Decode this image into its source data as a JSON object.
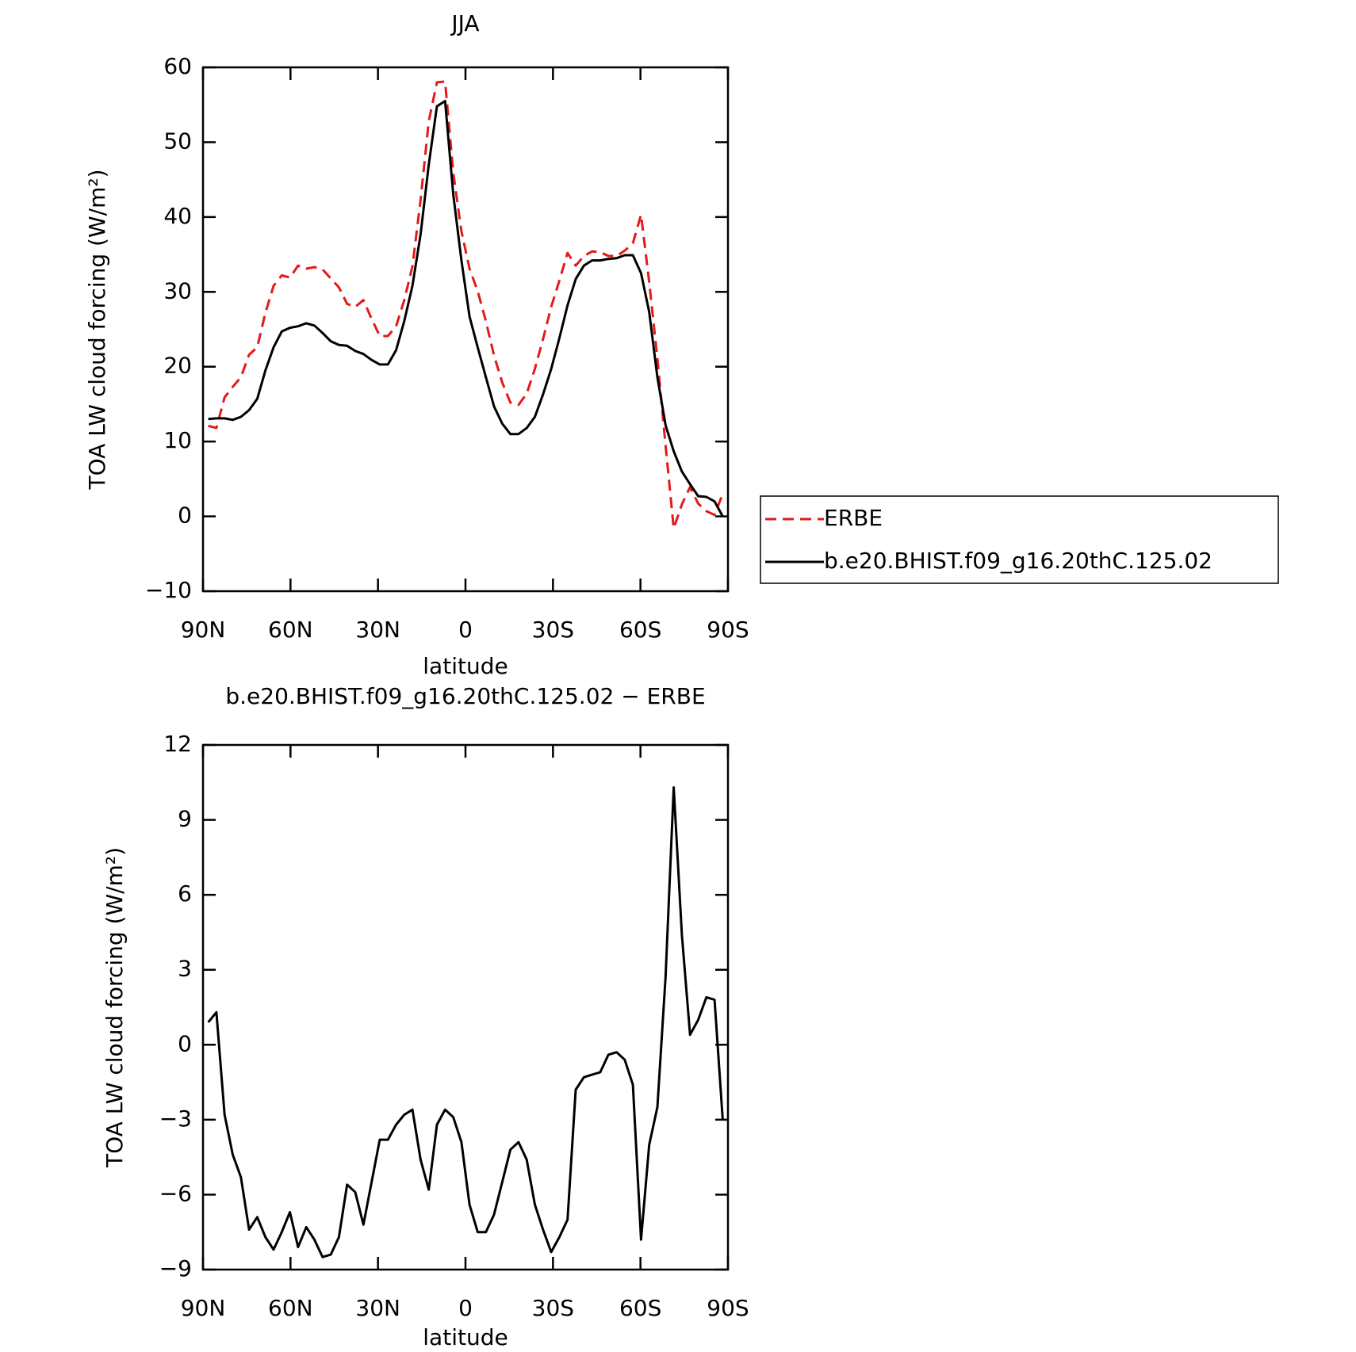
{
  "chart_data": [
    {
      "type": "line",
      "title": "JJA",
      "xlabel": "latitude",
      "ylabel": "TOA LW cloud forcing (W/m²)",
      "x": [
        88.2,
        85.4,
        82.6,
        79.8,
        77.0,
        74.2,
        71.4,
        68.6,
        65.8,
        63.0,
        60.2,
        57.4,
        54.6,
        51.8,
        49.0,
        46.2,
        43.4,
        40.6,
        37.8,
        35.0,
        32.2,
        29.4,
        26.6,
        23.8,
        21.0,
        18.2,
        15.4,
        12.6,
        9.8,
        7.0,
        4.2,
        1.4,
        -1.4,
        -4.2,
        -7.0,
        -9.8,
        -12.6,
        -15.4,
        -18.2,
        -21.0,
        -23.8,
        -26.6,
        -29.4,
        -32.2,
        -35.0,
        -37.8,
        -40.6,
        -43.4,
        -46.2,
        -49.0,
        -51.8,
        -54.6,
        -57.4,
        -60.2,
        -63.0,
        -65.8,
        -68.6,
        -71.4,
        -74.2,
        -77.0,
        -79.8,
        -82.6,
        -85.4,
        -88.2
      ],
      "series": [
        {
          "name": "ERBE",
          "color": "#e31a1c",
          "dash": true,
          "values": [
            12.1,
            11.8,
            15.9,
            17.3,
            18.6,
            21.6,
            22.6,
            27.2,
            30.8,
            32.2,
            31.9,
            33.5,
            33.1,
            33.3,
            33.0,
            31.8,
            30.6,
            28.4,
            28.0,
            28.9,
            26.4,
            24.1,
            24.1,
            25.4,
            28.9,
            33.4,
            42.3,
            52.8,
            58.0,
            58.1,
            45.9,
            38.1,
            33.1,
            30.1,
            26.1,
            21.5,
            17.9,
            15.2,
            14.9,
            16.4,
            19.7,
            23.7,
            28.0,
            31.5,
            35.2,
            33.5,
            34.8,
            35.4,
            35.3,
            34.8,
            34.8,
            35.5,
            36.5,
            40.3,
            31.3,
            21.1,
            9.5,
            -1.6,
            1.6,
            3.9,
            1.7,
            0.7,
            0.2,
            3.0
          ]
        },
        {
          "name": "b.e20.BHIST.f09_g16.20thC.125.02",
          "color": "#000000",
          "dash": false,
          "values": [
            13.0,
            13.1,
            13.1,
            12.9,
            13.3,
            14.2,
            15.7,
            19.5,
            22.6,
            24.7,
            25.2,
            25.4,
            25.8,
            25.5,
            24.5,
            23.4,
            22.9,
            22.8,
            22.1,
            21.7,
            20.9,
            20.3,
            20.3,
            22.2,
            26.1,
            30.8,
            37.7,
            47.0,
            54.8,
            55.5,
            43.0,
            34.2,
            26.7,
            22.6,
            18.6,
            14.7,
            12.4,
            11.0,
            11.0,
            11.8,
            13.3,
            16.3,
            19.7,
            23.8,
            28.2,
            31.7,
            33.5,
            34.2,
            34.2,
            34.4,
            34.5,
            34.9,
            34.9,
            32.5,
            27.3,
            18.6,
            12.2,
            8.7,
            6.0,
            4.3,
            2.7,
            2.6,
            2.0,
            0.0
          ]
        }
      ],
      "xlim": [
        90,
        -90
      ],
      "xticks": [
        {
          "value": 90,
          "label": "90N"
        },
        {
          "value": 60,
          "label": "60N"
        },
        {
          "value": 30,
          "label": "30N"
        },
        0,
        {
          "value": -30,
          "label": "30S"
        },
        {
          "value": -60,
          "label": "60S"
        },
        {
          "value": -90,
          "label": "90S"
        }
      ],
      "ylim": [
        -10,
        60
      ],
      "yticks": [
        {
          "value": -10,
          "label": "−10"
        },
        0,
        10,
        20,
        30,
        40,
        50,
        60
      ],
      "legend": "outside-right"
    },
    {
      "type": "line",
      "title": "b.e20.BHIST.f09_g16.20thC.125.02 − ERBE",
      "xlabel": "latitude",
      "ylabel": "TOA LW cloud forcing (W/m²)",
      "x": [
        88.2,
        85.4,
        82.6,
        79.8,
        77.0,
        74.2,
        71.4,
        68.6,
        65.8,
        63.0,
        60.2,
        57.4,
        54.6,
        51.8,
        49.0,
        46.2,
        43.4,
        40.6,
        37.8,
        35.0,
        32.2,
        29.4,
        26.6,
        23.8,
        21.0,
        18.2,
        15.4,
        12.6,
        9.8,
        7.0,
        4.2,
        1.4,
        -1.4,
        -4.2,
        -7.0,
        -9.8,
        -12.6,
        -15.4,
        -18.2,
        -21.0,
        -23.8,
        -26.6,
        -29.4,
        -32.2,
        -35.0,
        -37.8,
        -40.6,
        -43.4,
        -46.2,
        -49.0,
        -51.8,
        -54.6,
        -57.4,
        -60.2,
        -63.0,
        -65.8,
        -68.6,
        -71.4,
        -74.2,
        -77.0,
        -79.8,
        -82.6,
        -85.4,
        -88.2
      ],
      "series": [
        {
          "color": "#000000",
          "dash": false,
          "values": [
            0.9,
            1.3,
            -2.8,
            -4.4,
            -5.3,
            -7.4,
            -6.9,
            -7.7,
            -8.2,
            -7.5,
            -6.7,
            -8.1,
            -7.3,
            -7.8,
            -8.5,
            -8.4,
            -7.7,
            -5.6,
            -5.9,
            -7.2,
            -5.5,
            -3.8,
            -3.8,
            -3.2,
            -2.8,
            -2.6,
            -4.6,
            -5.8,
            -3.2,
            -2.6,
            -2.9,
            -3.9,
            -6.4,
            -7.5,
            -7.5,
            -6.8,
            -5.5,
            -4.2,
            -3.9,
            -4.6,
            -6.4,
            -7.4,
            -8.3,
            -7.7,
            -7.0,
            -1.8,
            -1.3,
            -1.2,
            -1.1,
            -0.4,
            -0.3,
            -0.6,
            -1.6,
            -7.8,
            -4.0,
            -2.5,
            2.7,
            10.3,
            4.4,
            0.4,
            1.0,
            1.9,
            1.8,
            -3.0
          ]
        }
      ],
      "xlim": [
        90,
        -90
      ],
      "xticks": [
        {
          "value": 90,
          "label": "90N"
        },
        {
          "value": 60,
          "label": "60N"
        },
        {
          "value": 30,
          "label": "30N"
        },
        0,
        {
          "value": -30,
          "label": "30S"
        },
        {
          "value": -60,
          "label": "60S"
        },
        {
          "value": -90,
          "label": "90S"
        }
      ],
      "ylim": [
        -9,
        12
      ],
      "yticks": [
        {
          "value": -9,
          "label": "−9"
        },
        {
          "value": -6,
          "label": "−6"
        },
        {
          "value": -3,
          "label": "−3"
        },
        0,
        3,
        6,
        9,
        12
      ]
    }
  ]
}
